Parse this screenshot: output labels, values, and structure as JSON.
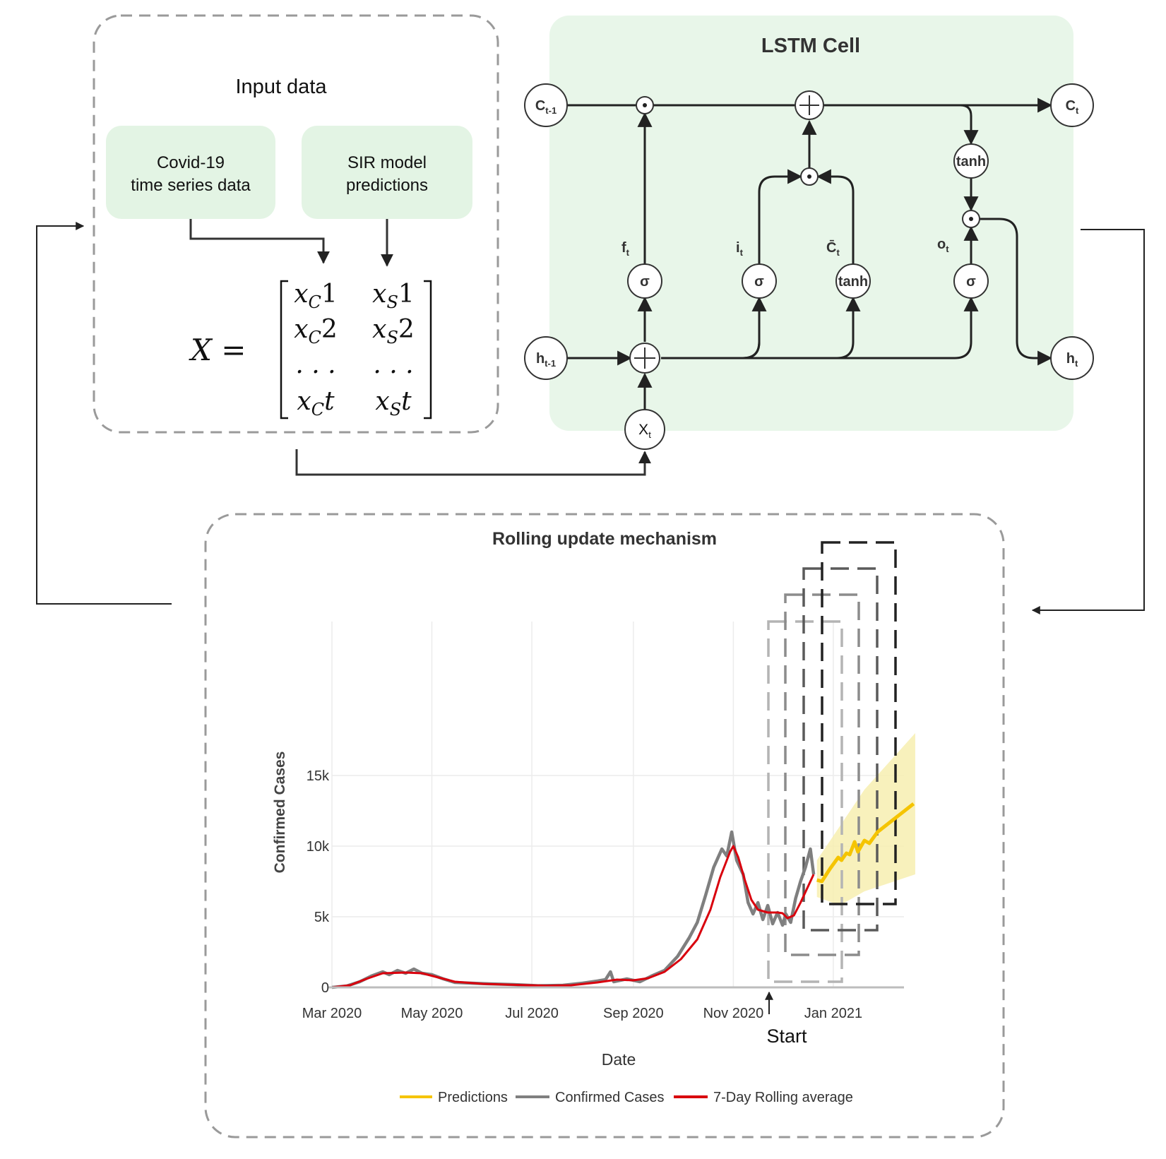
{
  "input_panel": {
    "title": "Input data",
    "box1_line1": "Covid-19",
    "box1_line2": "time series data",
    "box2_line1": "SIR model",
    "box2_line2": "predictions",
    "matrix_lhs": "X =",
    "matrix": [
      [
        "x_C1",
        "x_S1"
      ],
      [
        "x_C2",
        "x_S2"
      ],
      [
        "...",
        "..."
      ],
      [
        "x_Ct",
        "x_St"
      ]
    ]
  },
  "lstm": {
    "title": "LSTM Cell",
    "c_prev": "C",
    "c_prev_sub": "t-1",
    "c_next": "C",
    "c_next_sub": "t",
    "h_prev": "h",
    "h_prev_sub": "t-1",
    "h_next": "h",
    "h_next_sub": "t",
    "x_in": "X",
    "x_in_sub": "t",
    "sigma": "σ",
    "tanh": "tanh",
    "f_label": "f",
    "f_sub": "t",
    "i_label": "i",
    "i_sub": "t",
    "c_bar_label": "C̄",
    "c_bar_sub": "t",
    "o_label": "o",
    "o_sub": "t"
  },
  "rolling": {
    "title": "Rolling update mechanism",
    "start_label": "Start"
  },
  "chart_data": {
    "type": "line",
    "title": "",
    "xlabel": "Date",
    "ylabel": "Confirmed Cases",
    "x_ticks": [
      "Mar 2020",
      "May 2020",
      "Jul 2020",
      "Sep 2020",
      "Nov 2020",
      "Jan 2021"
    ],
    "y_ticks": [
      "0",
      "5k",
      "10k",
      "15k"
    ],
    "ylim": [
      0,
      19000
    ],
    "grid": true,
    "legend_position": "bottom",
    "legend": [
      "Predictions",
      "Confirmed Cases",
      "7-Day Rolling average"
    ],
    "colors": {
      "predictions": "#f5c400",
      "band": "#f7eeb0",
      "confirmed": "#7f7f7f",
      "rolling": "#d9000d"
    },
    "series": [
      {
        "name": "Confirmed Cases",
        "points": [
          [
            "2020-03-01",
            0
          ],
          [
            "2020-03-10",
            100
          ],
          [
            "2020-03-18",
            400
          ],
          [
            "2020-03-25",
            800
          ],
          [
            "2020-04-01",
            1100
          ],
          [
            "2020-04-05",
            900
          ],
          [
            "2020-04-10",
            1200
          ],
          [
            "2020-04-15",
            1000
          ],
          [
            "2020-04-20",
            1300
          ],
          [
            "2020-04-25",
            1000
          ],
          [
            "2020-05-01",
            900
          ],
          [
            "2020-05-08",
            600
          ],
          [
            "2020-05-15",
            350
          ],
          [
            "2020-05-25",
            300
          ],
          [
            "2020-06-05",
            250
          ],
          [
            "2020-06-20",
            200
          ],
          [
            "2020-07-05",
            120
          ],
          [
            "2020-07-20",
            150
          ],
          [
            "2020-08-01",
            300
          ],
          [
            "2020-08-10",
            450
          ],
          [
            "2020-08-15",
            550
          ],
          [
            "2020-08-18",
            1100
          ],
          [
            "2020-08-20",
            400
          ],
          [
            "2020-08-28",
            600
          ],
          [
            "2020-09-05",
            400
          ],
          [
            "2020-09-12",
            800
          ],
          [
            "2020-09-20",
            1200
          ],
          [
            "2020-09-28",
            2200
          ],
          [
            "2020-10-05",
            3500
          ],
          [
            "2020-10-10",
            4600
          ],
          [
            "2020-10-15",
            6500
          ],
          [
            "2020-10-20",
            8500
          ],
          [
            "2020-10-25",
            9800
          ],
          [
            "2020-10-28",
            9300
          ],
          [
            "2020-10-31",
            11000
          ],
          [
            "2020-11-03",
            9000
          ],
          [
            "2020-11-07",
            8000
          ],
          [
            "2020-11-10",
            6000
          ],
          [
            "2020-11-13",
            5200
          ],
          [
            "2020-11-16",
            6000
          ],
          [
            "2020-11-19",
            4800
          ],
          [
            "2020-11-22",
            5800
          ],
          [
            "2020-11-25",
            4500
          ],
          [
            "2020-11-28",
            5300
          ],
          [
            "2020-12-01",
            4400
          ],
          [
            "2020-12-03",
            5200
          ],
          [
            "2020-12-06",
            4600
          ],
          [
            "2020-12-09",
            6300
          ],
          [
            "2020-12-12",
            7500
          ],
          [
            "2020-12-15",
            8500
          ],
          [
            "2020-12-18",
            9800
          ],
          [
            "2020-12-20",
            8000
          ]
        ]
      },
      {
        "name": "7-Day Rolling average",
        "points": [
          [
            "2020-03-01",
            0
          ],
          [
            "2020-03-12",
            150
          ],
          [
            "2020-03-22",
            600
          ],
          [
            "2020-04-01",
            1000
          ],
          [
            "2020-04-15",
            1050
          ],
          [
            "2020-04-25",
            1000
          ],
          [
            "2020-05-05",
            700
          ],
          [
            "2020-05-15",
            400
          ],
          [
            "2020-06-01",
            250
          ],
          [
            "2020-06-20",
            180
          ],
          [
            "2020-07-10",
            120
          ],
          [
            "2020-07-25",
            150
          ],
          [
            "2020-08-10",
            350
          ],
          [
            "2020-08-22",
            550
          ],
          [
            "2020-09-01",
            500
          ],
          [
            "2020-09-10",
            650
          ],
          [
            "2020-09-20",
            1100
          ],
          [
            "2020-09-30",
            2000
          ],
          [
            "2020-10-10",
            3400
          ],
          [
            "2020-10-18",
            5500
          ],
          [
            "2020-10-24",
            7800
          ],
          [
            "2020-10-30",
            9600
          ],
          [
            "2020-11-01",
            10000
          ],
          [
            "2020-11-04",
            9200
          ],
          [
            "2020-11-08",
            7600
          ],
          [
            "2020-11-12",
            6200
          ],
          [
            "2020-11-16",
            5500
          ],
          [
            "2020-11-22",
            5300
          ],
          [
            "2020-11-28",
            5300
          ],
          [
            "2020-12-01",
            5250
          ],
          [
            "2020-12-04",
            4900
          ],
          [
            "2020-12-08",
            5100
          ],
          [
            "2020-12-12",
            6000
          ],
          [
            "2020-12-16",
            7000
          ],
          [
            "2020-12-20",
            8000
          ]
        ]
      },
      {
        "name": "Predictions",
        "points": [
          [
            "2020-12-22",
            7600
          ],
          [
            "2020-12-25",
            7500
          ],
          [
            "2020-12-30",
            8400
          ],
          [
            "2021-01-04",
            9200
          ],
          [
            "2021-01-06",
            9000
          ],
          [
            "2021-01-09",
            9500
          ],
          [
            "2021-01-11",
            9400
          ],
          [
            "2021-01-14",
            10300
          ],
          [
            "2021-01-16",
            9600
          ],
          [
            "2021-01-20",
            10400
          ],
          [
            "2021-01-23",
            10200
          ],
          [
            "2021-01-28",
            11000
          ],
          [
            "2021-02-08",
            12000
          ],
          [
            "2021-02-19",
            13000
          ]
        ]
      }
    ],
    "prediction_band": {
      "upper": [
        [
          "2020-12-22",
          9000
        ],
        [
          "2021-01-20",
          14000
        ],
        [
          "2021-02-20",
          18000
        ]
      ],
      "lower": [
        [
          "2020-12-22",
          6400
        ],
        [
          "2021-01-05",
          5800
        ],
        [
          "2021-01-20",
          6800
        ],
        [
          "2021-02-20",
          8000
        ]
      ]
    }
  }
}
